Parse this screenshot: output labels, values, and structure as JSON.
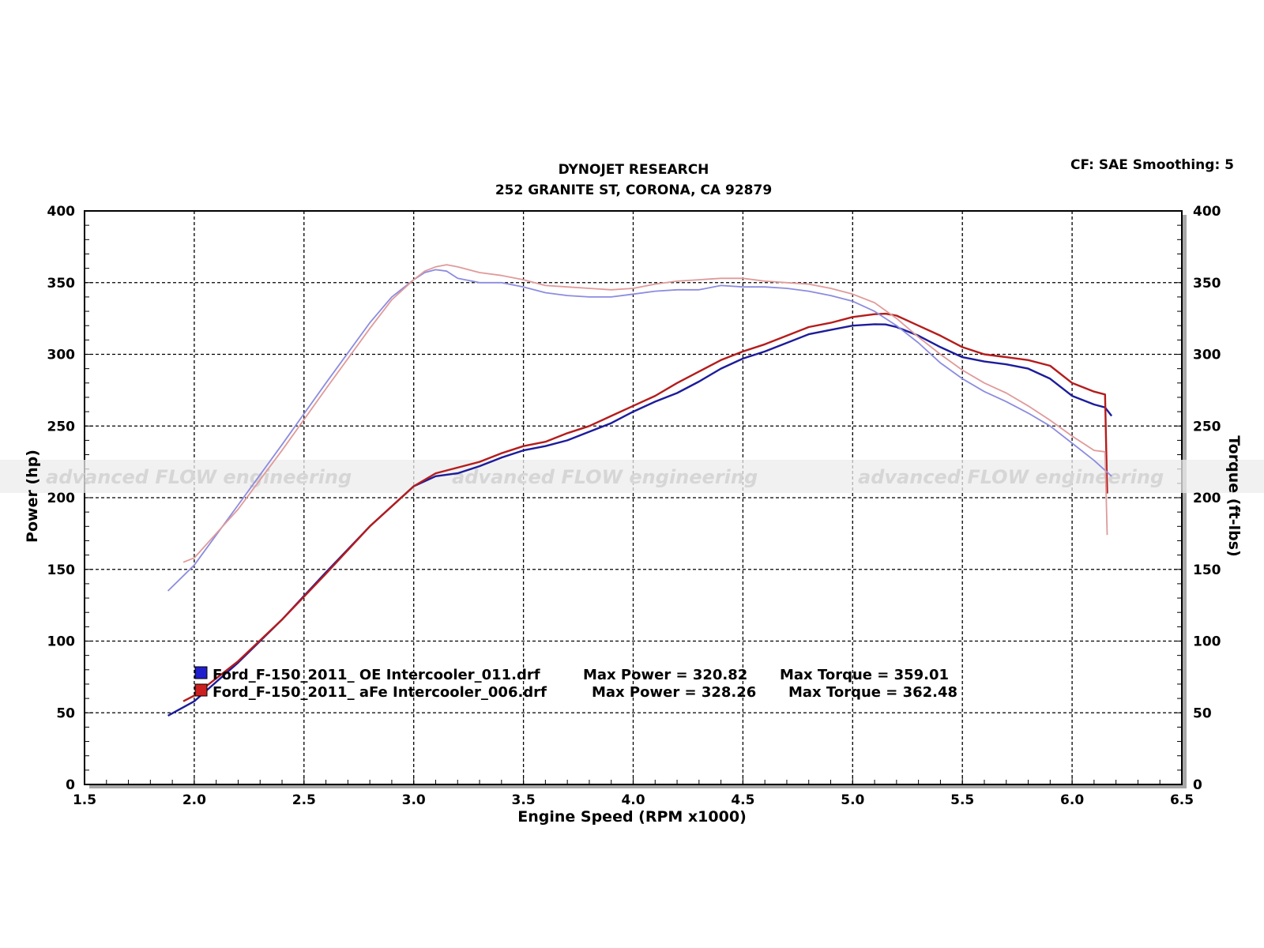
{
  "header": {
    "title_line1": "DYNOJET RESEARCH",
    "title_line2": "252 GRANITE ST, CORONA, CA 92879",
    "correction": "CF: SAE  Smoothing: 5"
  },
  "watermark": {
    "text": "advanced FLOW engineering",
    "band_color": "#ececec"
  },
  "chart_data": {
    "type": "line",
    "xlabel": "Engine Speed (RPM x1000)",
    "ylabel_left": "Power (hp)",
    "ylabel_right": "Torque (ft-lbs)",
    "xlim": [
      1.5,
      6.5
    ],
    "ylim": [
      0,
      400
    ],
    "x_ticks": [
      "1.5",
      "2.0",
      "2.5",
      "3.0",
      "3.5",
      "4.0",
      "4.5",
      "5.0",
      "5.5",
      "6.0",
      "6.5"
    ],
    "y_ticks_left": [
      "0",
      "50",
      "100",
      "150",
      "200",
      "250",
      "300",
      "350",
      "400"
    ],
    "y_ticks_right": [
      "0",
      "50",
      "100",
      "150",
      "200",
      "250",
      "300",
      "350",
      "400"
    ],
    "grid": true,
    "legend_position": "bottom-left",
    "legend": [
      {
        "color": "#1f1fcc",
        "file": "Ford_F-150_2011_ OE Intercooler_011.drf",
        "max_power_text": "Max Power = 320.82",
        "max_torque_text": "Max Torque = 359.01"
      },
      {
        "color": "#cc1f1f",
        "file": "Ford_F-150_2011_ aFe Intercooler_006.drf",
        "max_power_text": "Max Power = 328.26",
        "max_torque_text": "Max Torque = 362.48"
      }
    ],
    "series": [
      {
        "run": "OE Intercooler",
        "kind": "power",
        "color": "#1c1c9c",
        "x": [
          1.88,
          2.0,
          2.2,
          2.4,
          2.6,
          2.8,
          3.0,
          3.1,
          3.2,
          3.3,
          3.4,
          3.5,
          3.6,
          3.7,
          3.8,
          3.9,
          4.0,
          4.1,
          4.2,
          4.3,
          4.4,
          4.5,
          4.6,
          4.7,
          4.8,
          4.9,
          5.0,
          5.1,
          5.15,
          5.2,
          5.3,
          5.4,
          5.5,
          5.6,
          5.7,
          5.8,
          5.9,
          6.0,
          6.1,
          6.15,
          6.18
        ],
        "y": [
          48,
          58,
          85,
          115,
          148,
          180,
          208,
          215,
          217,
          222,
          228,
          233,
          236,
          240,
          246,
          252,
          260,
          267,
          273,
          281,
          290,
          297,
          302,
          308,
          314,
          317,
          320,
          321,
          320.8,
          319,
          313,
          305,
          298,
          295,
          293,
          290,
          283,
          271,
          265,
          263,
          257
        ]
      },
      {
        "run": "aFe Intercooler",
        "kind": "power",
        "color": "#b51c1c",
        "x": [
          1.95,
          2.0,
          2.2,
          2.4,
          2.6,
          2.8,
          3.0,
          3.1,
          3.2,
          3.3,
          3.4,
          3.5,
          3.6,
          3.7,
          3.8,
          3.9,
          4.0,
          4.1,
          4.2,
          4.3,
          4.4,
          4.5,
          4.6,
          4.7,
          4.8,
          4.9,
          5.0,
          5.1,
          5.15,
          5.2,
          5.3,
          5.4,
          5.5,
          5.6,
          5.7,
          5.8,
          5.9,
          6.0,
          6.1,
          6.15,
          6.16
        ],
        "y": [
          58,
          62,
          86,
          115,
          147,
          180,
          208,
          217,
          221,
          225,
          231,
          236,
          239,
          245,
          250,
          257,
          264,
          271,
          280,
          288,
          296,
          302,
          307,
          313,
          319,
          322,
          326,
          328,
          328.3,
          327,
          320,
          313,
          305,
          300,
          298,
          296,
          292,
          280,
          274,
          272,
          203
        ]
      },
      {
        "run": "OE Intercooler",
        "kind": "torque",
        "color": "#8c8ce0",
        "x": [
          1.88,
          2.0,
          2.2,
          2.4,
          2.6,
          2.8,
          2.9,
          3.0,
          3.05,
          3.1,
          3.15,
          3.2,
          3.3,
          3.4,
          3.5,
          3.6,
          3.7,
          3.8,
          3.9,
          4.0,
          4.1,
          4.2,
          4.3,
          4.4,
          4.5,
          4.6,
          4.7,
          4.8,
          4.9,
          5.0,
          5.1,
          5.2,
          5.3,
          5.4,
          5.5,
          5.6,
          5.7,
          5.8,
          5.9,
          6.0,
          6.1,
          6.18
        ],
        "y": [
          135,
          153,
          195,
          237,
          280,
          322,
          340,
          352,
          357,
          359,
          358,
          353,
          350,
          350,
          347,
          343,
          341,
          340,
          340,
          342,
          344,
          345,
          345,
          348,
          347,
          347,
          346,
          344,
          341,
          337,
          330,
          320,
          308,
          294,
          283,
          274,
          267,
          259,
          250,
          238,
          226,
          215
        ]
      },
      {
        "run": "aFe Intercooler",
        "kind": "torque",
        "color": "#e09a9a",
        "x": [
          1.95,
          2.0,
          2.2,
          2.4,
          2.6,
          2.8,
          2.9,
          3.0,
          3.05,
          3.1,
          3.15,
          3.2,
          3.3,
          3.4,
          3.5,
          3.6,
          3.7,
          3.8,
          3.9,
          4.0,
          4.1,
          4.2,
          4.3,
          4.4,
          4.5,
          4.6,
          4.7,
          4.8,
          4.9,
          5.0,
          5.1,
          5.2,
          5.3,
          5.4,
          5.5,
          5.6,
          5.7,
          5.8,
          5.9,
          6.0,
          6.1,
          6.15,
          6.16
        ],
        "y": [
          155,
          158,
          192,
          233,
          276,
          318,
          338,
          352,
          358,
          361,
          362.5,
          361,
          357,
          355,
          352,
          348,
          347,
          346,
          345,
          346,
          349,
          351,
          352,
          353,
          353,
          351,
          350,
          349,
          346,
          342,
          336,
          325,
          312,
          300,
          289,
          280,
          273,
          264,
          254,
          243,
          233,
          232,
          174
        ]
      }
    ]
  }
}
